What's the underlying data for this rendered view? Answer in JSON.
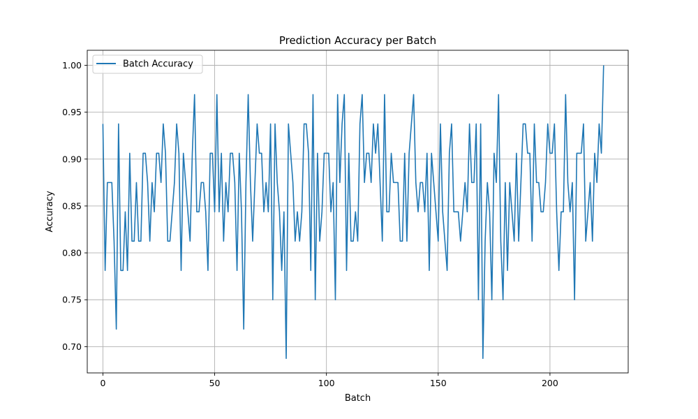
{
  "chart_data": {
    "type": "line",
    "title": "Prediction Accuracy per Batch",
    "xlabel": "Batch",
    "ylabel": "Accuracy",
    "xlim": [
      -7,
      235
    ],
    "ylim": [
      0.672,
      1.016
    ],
    "xticks": [
      0,
      50,
      100,
      150,
      200
    ],
    "yticks": [
      0.7,
      0.75,
      0.8,
      0.85,
      0.9,
      0.95,
      1.0
    ],
    "xtick_labels": [
      "0",
      "50",
      "100",
      "150",
      "200"
    ],
    "ytick_labels": [
      "0.70",
      "0.75",
      "0.80",
      "0.85",
      "0.90",
      "0.95",
      "1.00"
    ],
    "grid": true,
    "legend_position": "upper-left",
    "series": [
      {
        "name": "Batch Accuracy",
        "color": "#1f77b4",
        "x_start": 0,
        "values": [
          0.9375,
          0.78125,
          0.875,
          0.875,
          0.875,
          0.8125,
          0.71875,
          0.9375,
          0.78125,
          0.78125,
          0.84375,
          0.78125,
          0.90625,
          0.8125,
          0.8125,
          0.875,
          0.8125,
          0.8125,
          0.90625,
          0.90625,
          0.875,
          0.8125,
          0.875,
          0.84375,
          0.90625,
          0.90625,
          0.875,
          0.9375,
          0.90625,
          0.8125,
          0.8125,
          0.84375,
          0.875,
          0.9375,
          0.90625,
          0.78125,
          0.90625,
          0.875,
          0.84375,
          0.8125,
          0.90625,
          0.96875,
          0.84375,
          0.84375,
          0.875,
          0.875,
          0.84375,
          0.78125,
          0.90625,
          0.90625,
          0.84375,
          0.96875,
          0.84375,
          0.90625,
          0.8125,
          0.875,
          0.84375,
          0.90625,
          0.90625,
          0.875,
          0.78125,
          0.90625,
          0.84375,
          0.71875,
          0.875,
          0.96875,
          0.875,
          0.8125,
          0.875,
          0.9375,
          0.90625,
          0.90625,
          0.84375,
          0.875,
          0.84375,
          0.9375,
          0.75,
          0.9375,
          0.875,
          0.84375,
          0.78125,
          0.84375,
          0.6875,
          0.9375,
          0.90625,
          0.875,
          0.8125,
          0.84375,
          0.8125,
          0.84375,
          0.9375,
          0.9375,
          0.90625,
          0.78125,
          0.96875,
          0.75,
          0.90625,
          0.8125,
          0.84375,
          0.90625,
          0.90625,
          0.90625,
          0.84375,
          0.875,
          0.75,
          0.96875,
          0.875,
          0.9375,
          0.96875,
          0.78125,
          0.90625,
          0.8125,
          0.8125,
          0.84375,
          0.8125,
          0.9375,
          0.96875,
          0.875,
          0.90625,
          0.90625,
          0.875,
          0.9375,
          0.90625,
          0.9375,
          0.875,
          0.8125,
          0.96875,
          0.84375,
          0.84375,
          0.90625,
          0.875,
          0.875,
          0.875,
          0.8125,
          0.8125,
          0.90625,
          0.8125,
          0.90625,
          0.9375,
          0.96875,
          0.875,
          0.84375,
          0.875,
          0.875,
          0.84375,
          0.90625,
          0.78125,
          0.90625,
          0.875,
          0.84375,
          0.8125,
          0.9375,
          0.84375,
          0.8125,
          0.78125,
          0.90625,
          0.9375,
          0.84375,
          0.84375,
          0.84375,
          0.8125,
          0.84375,
          0.875,
          0.84375,
          0.9375,
          0.875,
          0.875,
          0.9375,
          0.75,
          0.9375,
          0.6875,
          0.8125,
          0.875,
          0.84375,
          0.75,
          0.90625,
          0.875,
          0.96875,
          0.8125,
          0.75,
          0.875,
          0.78125,
          0.875,
          0.84375,
          0.8125,
          0.90625,
          0.8125,
          0.875,
          0.9375,
          0.9375,
          0.90625,
          0.90625,
          0.8125,
          0.9375,
          0.875,
          0.875,
          0.84375,
          0.84375,
          0.875,
          0.9375,
          0.90625,
          0.90625,
          0.9375,
          0.84375,
          0.78125,
          0.84375,
          0.84375,
          0.96875,
          0.875,
          0.84375,
          0.875,
          0.75,
          0.90625,
          0.90625,
          0.90625,
          0.9375,
          0.8125,
          0.84375,
          0.875,
          0.8125,
          0.90625,
          0.875,
          0.9375,
          0.90625,
          1.0
        ]
      }
    ]
  }
}
